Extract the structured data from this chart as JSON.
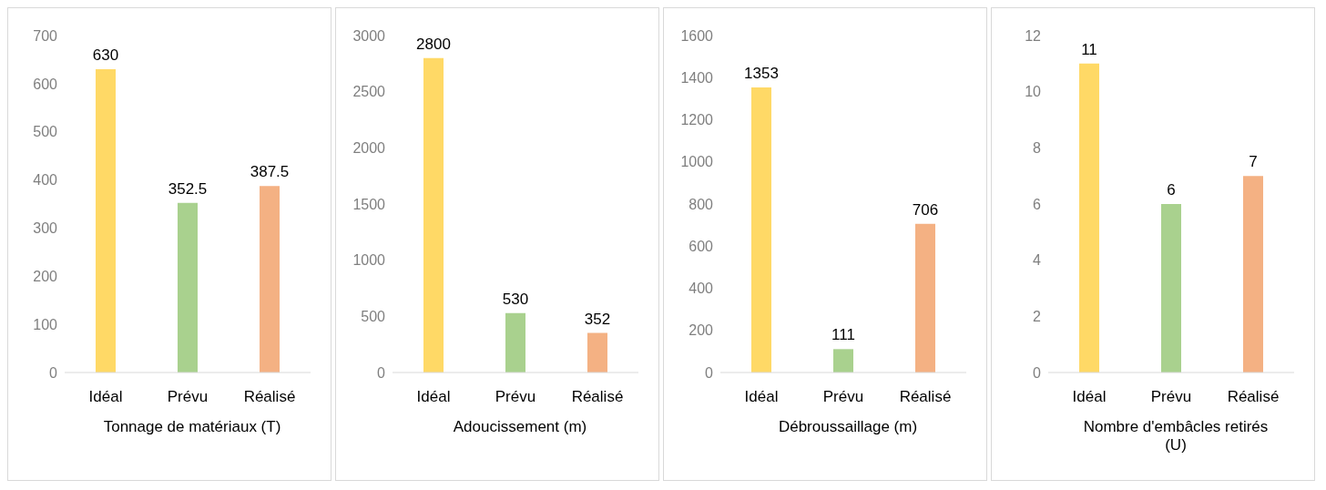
{
  "chart_data": [
    {
      "type": "bar",
      "categories": [
        "Idéal",
        "Prévu",
        "Réalisé"
      ],
      "values": [
        630,
        352.5,
        387.5
      ],
      "colors": [
        "#ffd966",
        "#a9d18e",
        "#f4b183"
      ],
      "ylim": [
        0,
        700
      ],
      "yticks": [
        0,
        100,
        200,
        300,
        400,
        500,
        600,
        700
      ],
      "xlabel": "Tonnage de matériaux (T)",
      "data_labels": true,
      "grid": false,
      "legend": false
    },
    {
      "type": "bar",
      "categories": [
        "Idéal",
        "Prévu",
        "Réalisé"
      ],
      "values": [
        2800,
        530,
        352
      ],
      "colors": [
        "#ffd966",
        "#a9d18e",
        "#f4b183"
      ],
      "ylim": [
        0,
        3000
      ],
      "yticks": [
        0,
        500,
        1000,
        1500,
        2000,
        2500,
        3000
      ],
      "xlabel": "Adoucissement (m)",
      "data_labels": true,
      "grid": false,
      "legend": false
    },
    {
      "type": "bar",
      "categories": [
        "Idéal",
        "Prévu",
        "Réalisé"
      ],
      "values": [
        1353,
        111,
        706
      ],
      "colors": [
        "#ffd966",
        "#a9d18e",
        "#f4b183"
      ],
      "ylim": [
        0,
        1600
      ],
      "yticks": [
        0,
        200,
        400,
        600,
        800,
        1000,
        1200,
        1400,
        1600
      ],
      "xlabel": "Débroussaillage (m)",
      "data_labels": true,
      "grid": false,
      "legend": false
    },
    {
      "type": "bar",
      "categories": [
        "Idéal",
        "Prévu",
        "Réalisé"
      ],
      "values": [
        11,
        6,
        7
      ],
      "colors": [
        "#ffd966",
        "#a9d18e",
        "#f4b183"
      ],
      "ylim": [
        0,
        12
      ],
      "yticks": [
        0,
        2,
        4,
        6,
        8,
        10,
        12
      ],
      "xlabel": "Nombre d'embâcles retirés (U)",
      "data_labels": true,
      "grid": false,
      "legend": false
    }
  ]
}
